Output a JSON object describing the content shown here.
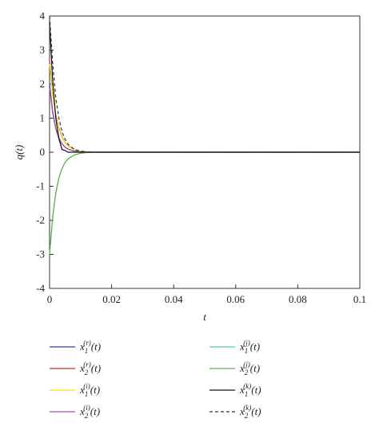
{
  "chart_data": {
    "type": "line",
    "x_label": "t",
    "y_label": "q(t)",
    "x": [
      0,
      0.001,
      0.002,
      0.003,
      0.004,
      0.005,
      0.006,
      0.008,
      0.01,
      0.012,
      0.015,
      0.1
    ],
    "xlim": [
      0,
      0.1
    ],
    "xticks": [
      0,
      0.02,
      0.04,
      0.06,
      0.08,
      0.1
    ],
    "ylim": [
      -4,
      4
    ],
    "yticks": [
      -4,
      -3,
      -2,
      -1,
      0,
      1,
      2,
      3,
      4
    ],
    "series": [
      {
        "name": "x1(r)(t)",
        "color": "#2e3f9e",
        "values": [
          2.0,
          1.2,
          0.7,
          0.42,
          0.25,
          0.15,
          0.09,
          0.03,
          0.01,
          0,
          0,
          0
        ]
      },
      {
        "name": "x2(r)(t)",
        "color": "#d62a2a",
        "values": [
          2.7,
          1.7,
          1.1,
          0.7,
          0.45,
          0.28,
          0.18,
          0.07,
          0.03,
          0.01,
          0,
          0
        ]
      },
      {
        "name": "x1(i)(t)",
        "color": "#f2e21c",
        "values": [
          2.6,
          1.65,
          1.05,
          0.67,
          0.43,
          0.27,
          0.17,
          0.07,
          0.03,
          0.01,
          0,
          0
        ]
      },
      {
        "name": "x2(i)(t)",
        "color": "#b04fb5",
        "values": [
          1.9,
          1.15,
          0.68,
          0.4,
          0.24,
          0.14,
          0.08,
          0.03,
          0.01,
          0,
          0,
          0
        ]
      },
      {
        "name": "x1(j)(t)",
        "color": "#5fc7b0",
        "values": [
          -3.0,
          -1.9,
          -1.2,
          -0.75,
          -0.48,
          -0.3,
          -0.19,
          -0.08,
          -0.03,
          -0.01,
          0,
          0
        ]
      },
      {
        "name": "x2(j)(t)",
        "color": "#5fb346",
        "values": [
          -3.0,
          -1.9,
          -1.2,
          -0.76,
          -0.48,
          -0.3,
          -0.19,
          -0.08,
          -0.03,
          -0.01,
          0,
          0
        ]
      },
      {
        "name": "x1(k)(t)",
        "color": "#111111",
        "values": [
          3.8,
          2.1,
          1.0,
          0.4,
          0.08,
          0.05,
          0,
          0,
          0,
          0,
          0,
          0
        ]
      },
      {
        "name": "x2(k)(t)",
        "color": "#333333",
        "dashed": true,
        "values": [
          4.0,
          2.6,
          1.6,
          1.0,
          0.6,
          0.38,
          0.23,
          0.08,
          0.03,
          0.01,
          0,
          0
        ]
      }
    ]
  }
}
